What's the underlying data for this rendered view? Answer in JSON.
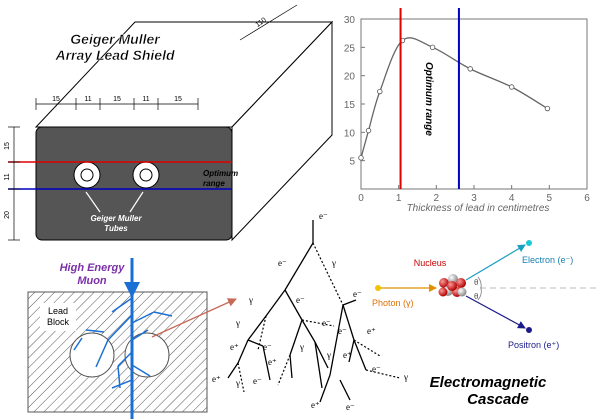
{
  "shield": {
    "title_line1": "Geiger Muller",
    "title_line2": "Array Lead Shield",
    "dim_length": "110",
    "dims_top": [
      "15",
      "11",
      "15",
      "11",
      "15"
    ],
    "dims_left": [
      "15",
      "11",
      "20"
    ],
    "optimum_line1": "Optimum",
    "optimum_line2": "range",
    "tubes_line1": "Geiger Muller",
    "tubes_line2": "Tubes",
    "colors": {
      "red_line": "#e00000",
      "blue_line": "#0000c0",
      "face": "#555555"
    }
  },
  "muon": {
    "label_line1": "High Energy",
    "label_line2": "Muon",
    "label_color": "#7b2fa8",
    "arrow_color": "#1a6fd4",
    "block_label_line1": "Lead",
    "block_label_line2": "Block"
  },
  "chart_data": {
    "type": "line",
    "xlabel": "Thickness of lead in centimetres",
    "xlim": [
      0,
      6
    ],
    "ylim": [
      0,
      30
    ],
    "xticks": [
      0,
      1,
      2,
      3,
      4,
      5,
      6
    ],
    "yticks": [
      5,
      10,
      15,
      20,
      25,
      30
    ],
    "points": [
      {
        "x": 0.0,
        "y": 5.5
      },
      {
        "x": 0.2,
        "y": 10.3
      },
      {
        "x": 0.5,
        "y": 17.2
      },
      {
        "x": 1.1,
        "y": 26.2
      },
      {
        "x": 1.9,
        "y": 25.0
      },
      {
        "x": 2.9,
        "y": 21.2
      },
      {
        "x": 4.0,
        "y": 18.0
      },
      {
        "x": 4.95,
        "y": 14.2
      }
    ],
    "red_line_x": 1.05,
    "blue_line_x": 2.6,
    "annotation": "Optimum range",
    "colors": {
      "red": "#e00000",
      "blue": "#0000c0",
      "curve": "#666666"
    }
  },
  "cascade": {
    "electron": "e⁻",
    "positron": "e⁺",
    "gamma": "γ",
    "title_line1": "Electromagnetic",
    "title_line2": "Cascade"
  },
  "pair": {
    "nucleus": "Nucleus",
    "photon": "Photon (γ)",
    "electron": "Electron (e⁻)",
    "positron": "Positron (e⁺)",
    "theta": "θ",
    "colors": {
      "nucleus_label": "#cc0000",
      "photon_label": "#e07000",
      "electron": "#1a9fc0",
      "positron": "#1a1a8a"
    }
  }
}
